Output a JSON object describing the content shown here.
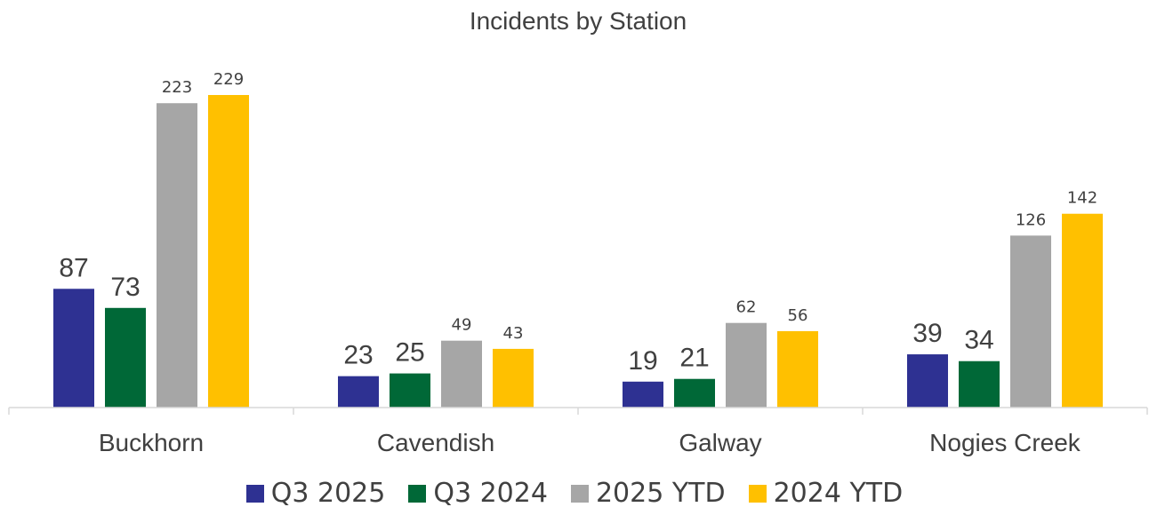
{
  "chart_data": {
    "type": "bar",
    "title": "Incidents by Station",
    "categories": [
      "Buckhorn",
      "Cavendish",
      "Galway",
      "Nogies Creek"
    ],
    "series": [
      {
        "name": "Q3 2025",
        "color": "#2E3192",
        "values": [
          87,
          23,
          19,
          39
        ]
      },
      {
        "name": "Q3 2024",
        "color": "#006837",
        "values": [
          73,
          25,
          21,
          34
        ]
      },
      {
        "name": "2025 YTD",
        "color": "#A6A6A6",
        "values": [
          223,
          49,
          62,
          126
        ]
      },
      {
        "name": "2024 YTD",
        "color": "#FFC000",
        "values": [
          229,
          43,
          56,
          142
        ]
      }
    ],
    "xlabel": "",
    "ylabel": "",
    "ylim": [
      0,
      229
    ],
    "grid": false,
    "legend_position": "bottom"
  }
}
